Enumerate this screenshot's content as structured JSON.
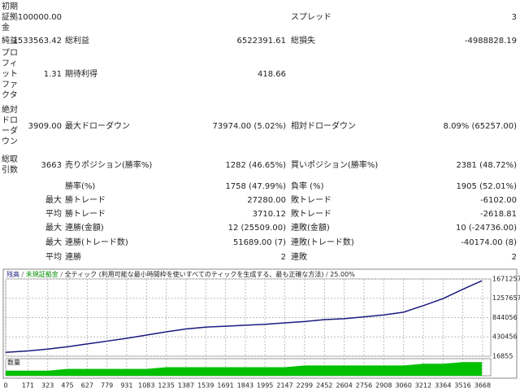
{
  "table": {
    "rows": [
      [
        "初期証拠金",
        "100000.00",
        null,
        null,
        "スプレッド",
        "3"
      ],
      [
        "純益",
        "1533563.42",
        "総利益",
        "6522391.61",
        "総損失",
        "-4988828.19"
      ],
      [
        "プロフィットファクタ",
        "1.31",
        "期待利得",
        "418.66",
        null,
        null
      ],
      [
        "絶対ドローダウン",
        "3909.00",
        "最大ドローダウン",
        "73974.00 (5.02%)",
        "相対ドローダウン",
        "8.09% (65257.00)"
      ],
      [
        "総取引数",
        "3663",
        "売りポジション(勝率%)",
        "1282 (46.65%)",
        "買いポジション(勝率%)",
        "2381 (48.72%)"
      ],
      [
        null,
        null,
        "勝率(%)",
        "1758 (47.99%)",
        "負率 (%)",
        "1905 (52.01%)"
      ],
      [
        null,
        "最大",
        "勝トレード",
        "27280.00",
        "敗トレード",
        "-6102.00"
      ],
      [
        null,
        "平均",
        "勝トレード",
        "3710.12",
        "敗トレード",
        "-2618.81"
      ],
      [
        null,
        "最大",
        "連勝(金額)",
        "12 (25509.00)",
        "連敗(金額)",
        "10 (-24736.00)"
      ],
      [
        null,
        "最大",
        "連勝(トレード数)",
        "51689.00 (7)",
        "連敗(トレード数)",
        "-40174.00 (8)"
      ],
      [
        null,
        "平均",
        "連勝",
        "2",
        "連敗",
        "2"
      ]
    ]
  },
  "chart_data": {
    "type": "line",
    "equity_label": "未規証拠金",
    "model": "全ティック (利用可能な最小時間枠を使いすべてのティックを生成する、最も正確な方法)",
    "quality": "25.00%",
    "x": [
      0,
      171,
      323,
      475,
      627,
      779,
      931,
      1083,
      1235,
      1387,
      1539,
      1691,
      1843,
      1995,
      2147,
      2299,
      2452,
      2604,
      2756,
      2908,
      3060,
      3212,
      3364,
      3516,
      3663
    ],
    "series": [
      {
        "name": "残高",
        "color": "#1a1a80",
        "values": [
          100000,
          130000,
          170000,
          220000,
          280000,
          340000,
          400000,
          470000,
          540000,
          600000,
          640000,
          660000,
          680000,
          700000,
          730000,
          760000,
          800000,
          820000,
          860000,
          900000,
          960000,
          1100000,
          1250000,
          1450000,
          1633563
        ]
      },
      {
        "name": "数量",
        "color": "#00c000",
        "axis": "y2",
        "values": [
          3,
          3,
          3,
          4,
          4,
          4,
          4,
          4,
          5,
          5,
          5,
          5,
          5,
          5,
          5,
          6,
          6,
          6,
          6,
          6,
          6,
          7,
          7,
          8,
          8
        ]
      }
    ],
    "xlim": [
      0,
      3731
    ],
    "xticks": [
      0,
      171,
      323,
      475,
      627,
      779,
      931,
      1083,
      1235,
      1387,
      1539,
      1691,
      1843,
      1995,
      2147,
      2299,
      2452,
      2604,
      2756,
      2908,
      3060,
      3212,
      3364,
      3516,
      3668
    ],
    "ylim": [
      16855,
      1671257
    ],
    "yticks": [
      16855,
      430456,
      844056,
      1257657,
      1671257
    ],
    "y2lim": [
      0,
      10
    ],
    "grid": true
  }
}
